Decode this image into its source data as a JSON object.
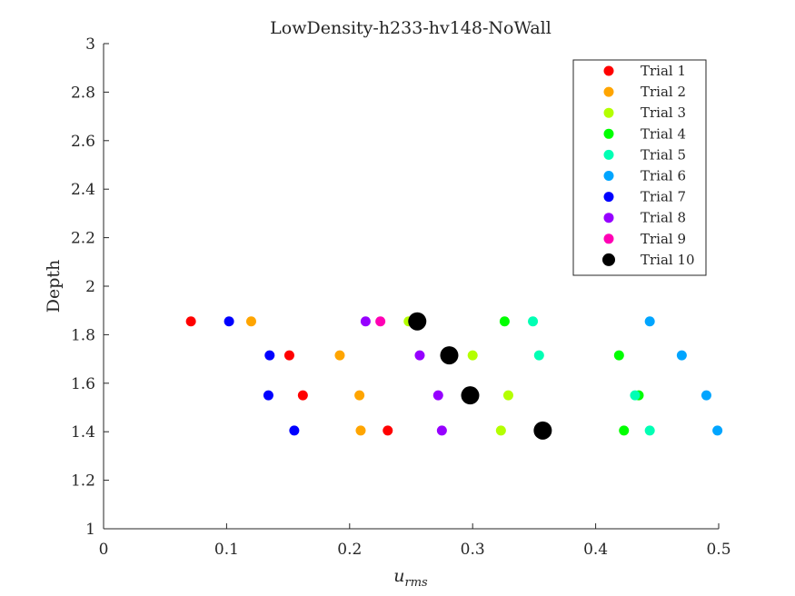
{
  "chart_data": {
    "type": "scatter",
    "title": "LowDensity-h233-hv148-NoWall",
    "xlabel": "u",
    "xlabel_sub": "rms",
    "ylabel": "Depth",
    "xlim": [
      0,
      0.5
    ],
    "ylim": [
      1,
      3
    ],
    "xticks": [
      "0",
      "0.1",
      "0.2",
      "0.3",
      "0.4",
      "0.5"
    ],
    "yticks": [
      "1",
      "1.2",
      "1.4",
      "1.6",
      "1.8",
      "2",
      "2.2",
      "2.4",
      "2.6",
      "2.8",
      "3"
    ],
    "grid": false,
    "legend_position": "top-right",
    "series": [
      {
        "name": "Trial 1",
        "color": "#ff0000",
        "points": [
          [
            0.071,
            1.855
          ],
          [
            0.151,
            1.715
          ],
          [
            0.162,
            1.55
          ],
          [
            0.231,
            1.405
          ]
        ]
      },
      {
        "name": "Trial 2",
        "color": "#ffa500",
        "points": [
          [
            0.12,
            1.855
          ],
          [
            0.192,
            1.715
          ],
          [
            0.208,
            1.55
          ],
          [
            0.209,
            1.405
          ]
        ]
      },
      {
        "name": "Trial 3",
        "color": "#b4ff00",
        "points": [
          [
            0.248,
            1.855
          ],
          [
            0.3,
            1.715
          ],
          [
            0.329,
            1.55
          ],
          [
            0.323,
            1.405
          ]
        ]
      },
      {
        "name": "Trial 4",
        "color": "#00ff00",
        "points": [
          [
            0.326,
            1.855
          ],
          [
            0.419,
            1.715
          ],
          [
            0.435,
            1.55
          ],
          [
            0.423,
            1.405
          ]
        ]
      },
      {
        "name": "Trial 5",
        "color": "#00ffb4",
        "points": [
          [
            0.349,
            1.855
          ],
          [
            0.354,
            1.715
          ],
          [
            0.432,
            1.55
          ],
          [
            0.444,
            1.405
          ]
        ]
      },
      {
        "name": "Trial 6",
        "color": "#00a5ff",
        "points": [
          [
            0.444,
            1.855
          ],
          [
            0.47,
            1.715
          ],
          [
            0.49,
            1.55
          ],
          [
            0.499,
            1.405
          ]
        ]
      },
      {
        "name": "Trial 7",
        "color": "#0000ff",
        "points": [
          [
            0.102,
            1.855
          ],
          [
            0.135,
            1.715
          ],
          [
            0.134,
            1.55
          ],
          [
            0.155,
            1.405
          ]
        ]
      },
      {
        "name": "Trial 8",
        "color": "#9600ff",
        "points": [
          [
            0.213,
            1.855
          ],
          [
            0.257,
            1.715
          ],
          [
            0.272,
            1.55
          ],
          [
            0.275,
            1.405
          ]
        ]
      },
      {
        "name": "Trial 9",
        "color": "#ff00b4",
        "points": [
          [
            0.225,
            1.855
          ]
        ]
      },
      {
        "name": "Trial 10",
        "color": "#000000",
        "points": [
          [
            0.255,
            1.855
          ],
          [
            0.281,
            1.715
          ],
          [
            0.298,
            1.55
          ],
          [
            0.357,
            1.405
          ]
        ]
      }
    ]
  }
}
